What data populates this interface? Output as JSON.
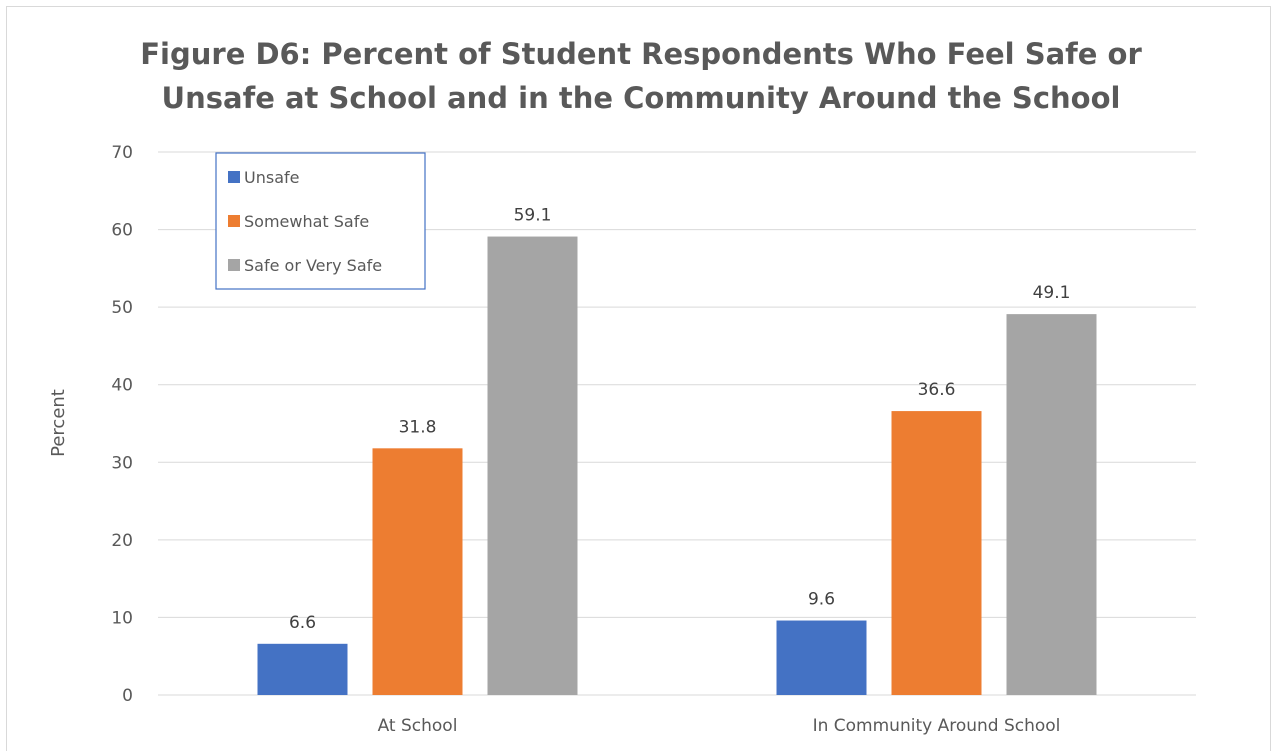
{
  "chart_data": {
    "type": "bar",
    "title": "Figure D6: Percent of Student Respondents Who Feel Safe or Unsafe at School and in the Community Around the School",
    "title_lines": [
      "Figure D6: Percent of Student Respondents Who Feel Safe or",
      "Unsafe at School and in the Community Around the School"
    ],
    "xlabel": "",
    "ylabel": "Percent",
    "ylim": [
      0,
      70
    ],
    "yticks": [
      0,
      10,
      20,
      30,
      40,
      50,
      60,
      70
    ],
    "grid": true,
    "legend_position": "top-left",
    "categories": [
      "At School",
      "In Community Around School"
    ],
    "series": [
      {
        "name": "Unsafe",
        "color": "#4472c4",
        "values": [
          6.6,
          9.6
        ],
        "labels": [
          "6.6",
          "9.6"
        ]
      },
      {
        "name": "Somewhat Safe",
        "color": "#ed7d31",
        "values": [
          31.8,
          36.6
        ],
        "labels": [
          "31.8",
          "36.6"
        ]
      },
      {
        "name": "Safe or Very Safe",
        "color": "#a5a5a5",
        "values": [
          59.1,
          49.1
        ],
        "labels": [
          "59.1",
          "49.1"
        ]
      }
    ]
  }
}
